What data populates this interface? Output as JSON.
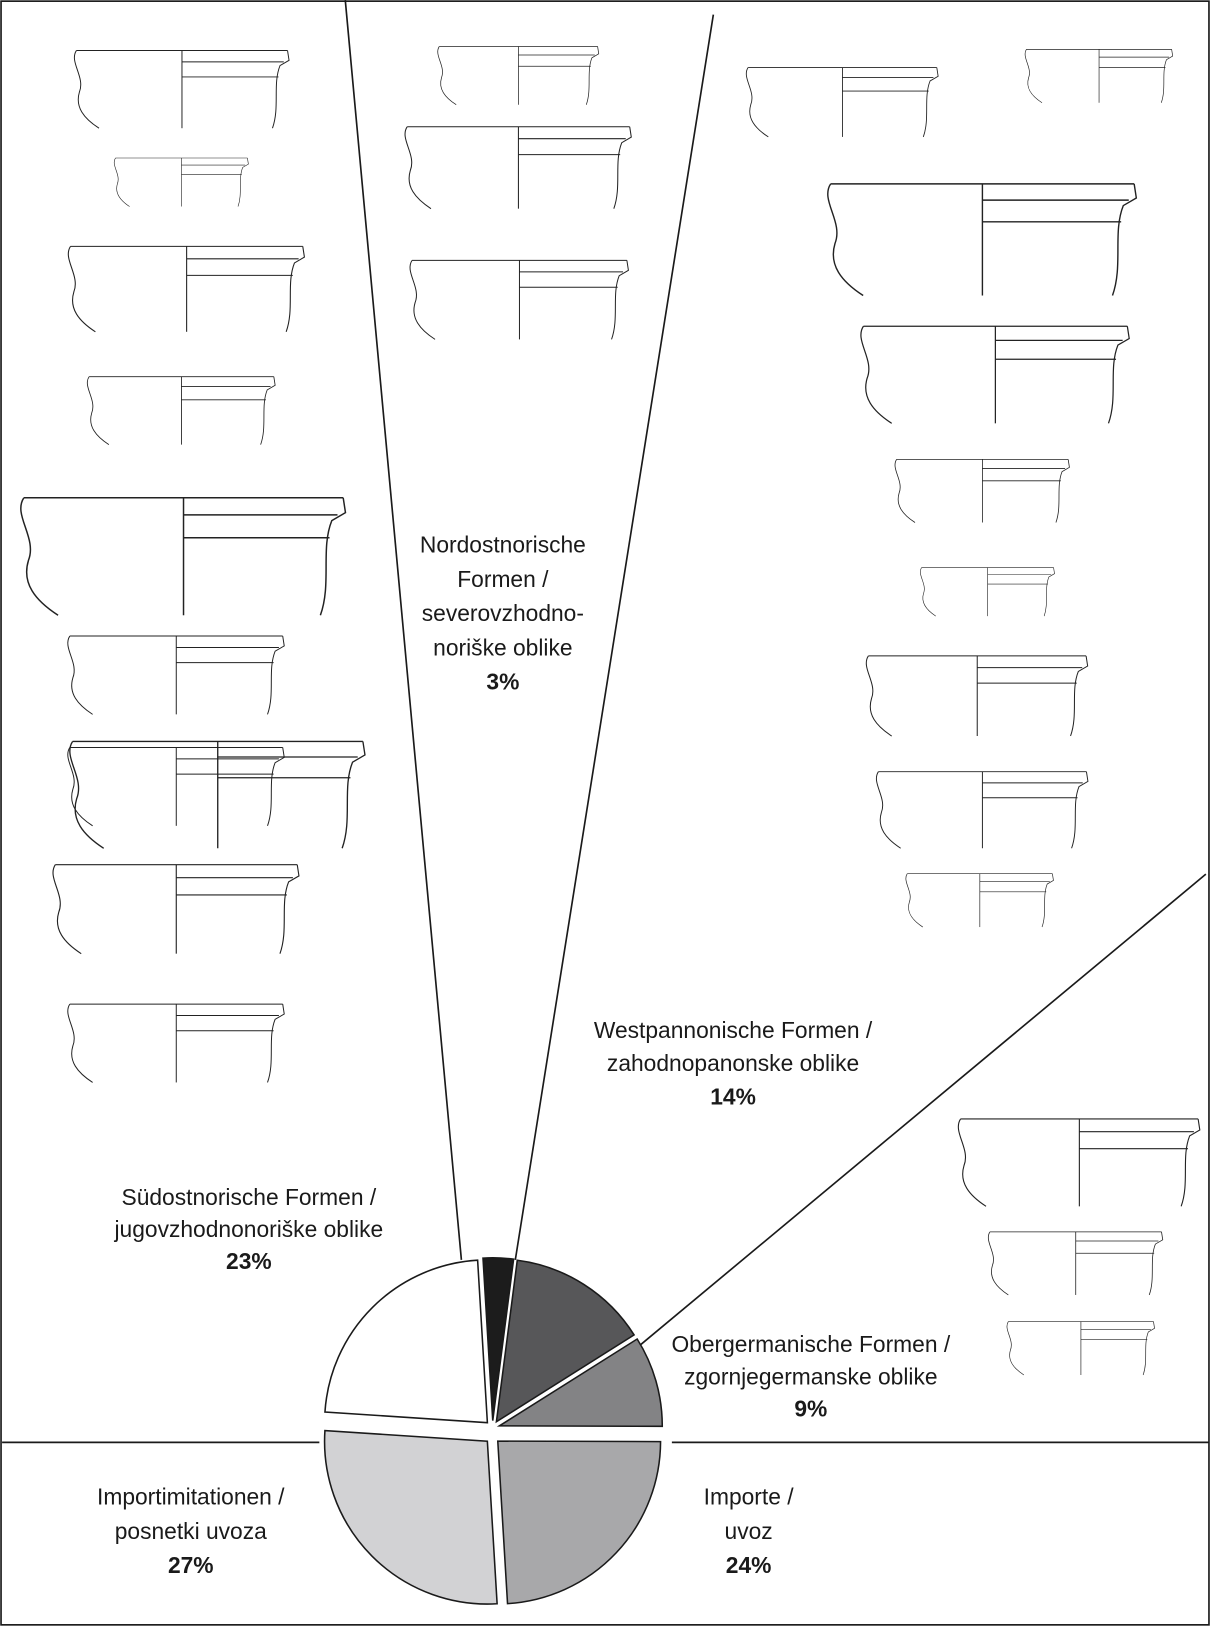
{
  "chart_data": {
    "type": "pie",
    "categories": [
      [
        "Nordostnorische",
        "Formen /",
        "severovzhodno-",
        "noriške oblike"
      ],
      [
        "Westpannonische Formen /",
        "zahodnopanonske oblike"
      ],
      [
        "Obergermanische Formen /",
        "zgornjegermanske oblike"
      ],
      [
        "Importe /",
        "uvoz"
      ],
      [
        "Importimitationen /",
        "posnetki uvoza"
      ],
      [
        "Südostnorische Formen /",
        "jugovzhodnonoriške oblike"
      ]
    ],
    "values": [
      3,
      14,
      9,
      24,
      27,
      23
    ],
    "value_labels": [
      "3%",
      "14%",
      "9%",
      "24%",
      "27%",
      "23%"
    ],
    "colors": [
      "#1c1c1c",
      "#575759",
      "#838385",
      "#a8a8aa",
      "#d2d2d4",
      "#ffffff"
    ]
  }
}
